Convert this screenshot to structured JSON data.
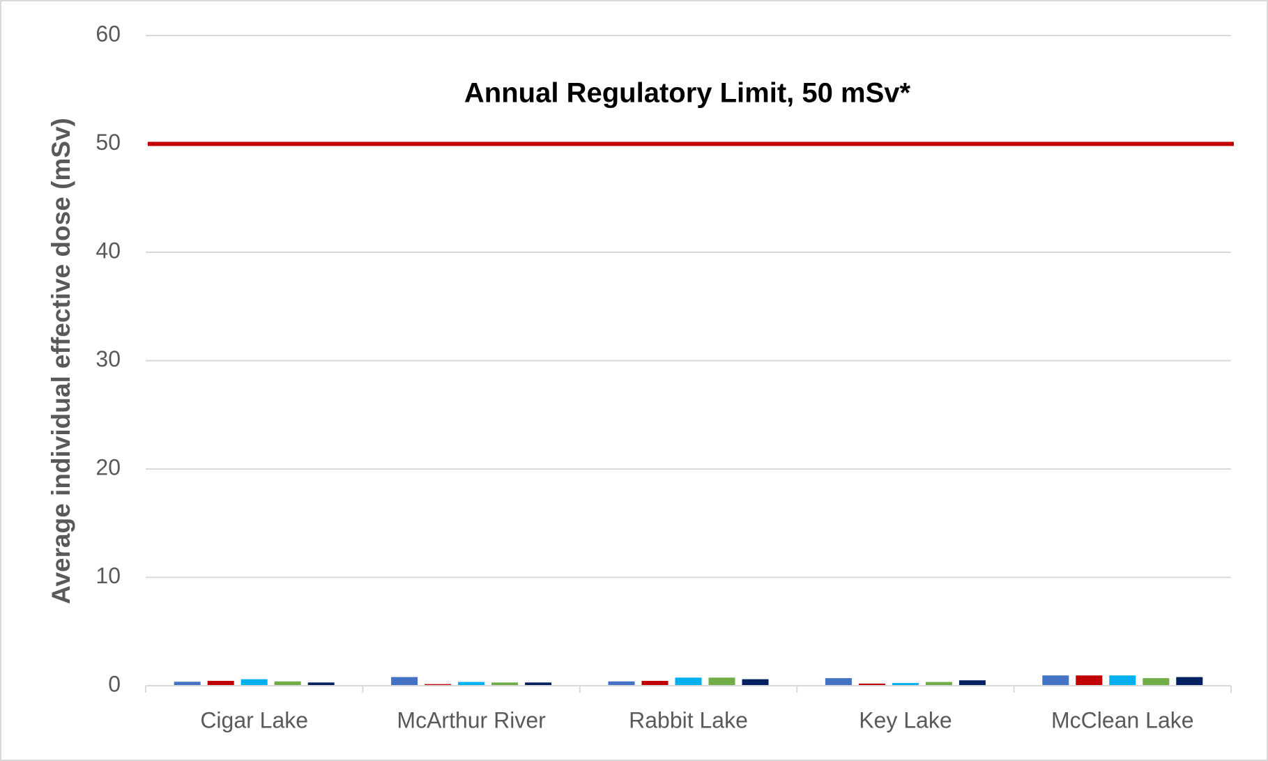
{
  "chart_data": {
    "type": "bar",
    "y_label": "Average individual effective dose (mSv)",
    "categories": [
      "Cigar Lake",
      "McArthur River",
      "Rabbit Lake",
      "Key Lake",
      "McClean Lake"
    ],
    "series": [
      {
        "color": "#4472c4",
        "values": [
          0.37,
          0.8,
          0.4,
          0.7,
          0.95
        ]
      },
      {
        "color": "#c00000",
        "values": [
          0.45,
          0.15,
          0.45,
          0.2,
          0.95
        ]
      },
      {
        "color": "#00b0f0",
        "values": [
          0.6,
          0.35,
          0.75,
          0.25,
          0.95
        ]
      },
      {
        "color": "#70ad47",
        "values": [
          0.4,
          0.3,
          0.75,
          0.35,
          0.7
        ]
      },
      {
        "color": "#002060",
        "values": [
          0.3,
          0.3,
          0.6,
          0.5,
          0.8
        ]
      }
    ],
    "reference_line": {
      "value": 50,
      "label": "Annual Regulatory Limit, 50 mSv*",
      "color": "#c00000"
    },
    "ylim": [
      0,
      60
    ],
    "yticks": [
      0,
      10,
      20,
      30,
      40,
      50,
      60
    ],
    "grid": true
  }
}
